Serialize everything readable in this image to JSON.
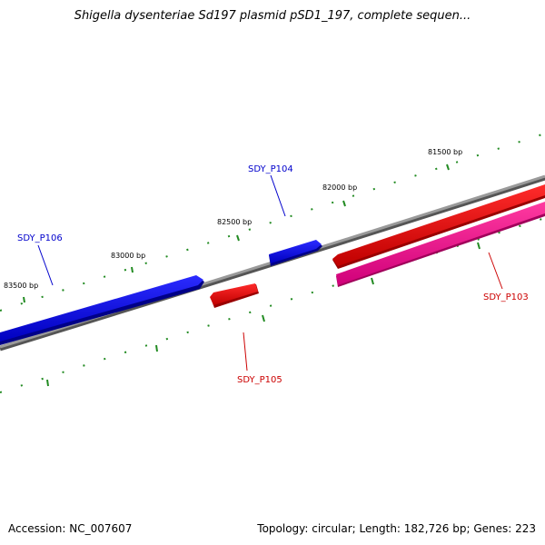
{
  "title": "Shigella dysenteriae Sd197 plasmid pSD1_197, complete sequen...",
  "accession": "Accession: NC_007607",
  "summary": "Topology: circular; Length: 182,726 bp; Genes: 223",
  "ruler": {
    "labels": [
      "81500 bp",
      "82000 bp",
      "82500 bp",
      "83000 bp",
      "83500 bp"
    ]
  },
  "genes": {
    "p104": {
      "name": "SDY_P104",
      "color": "#0000cc"
    },
    "p106": {
      "name": "SDY_P106",
      "color": "#0000cc"
    },
    "p105": {
      "name": "SDY_P105",
      "color": "#cc0000"
    },
    "p103": {
      "name": "SDY_P103",
      "color": "#cc0000"
    }
  },
  "colors": {
    "backbone": "#808080",
    "tick": "#228b22",
    "forward_strand": "#0000ff",
    "reverse_strand": "#ff0000",
    "other_strand": "#ff1493"
  }
}
